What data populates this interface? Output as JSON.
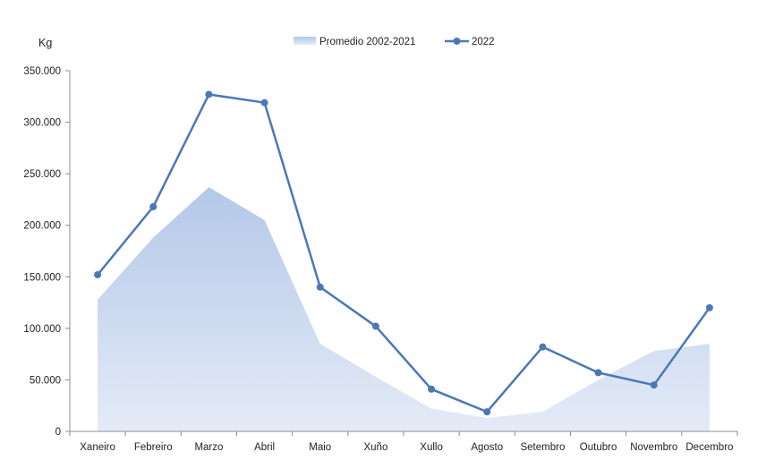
{
  "chart_data": {
    "type": "line",
    "title": "",
    "xlabel": "",
    "ylabel": "Kg",
    "ylim": [
      0,
      350000
    ],
    "yticks": [
      "0",
      "50.000",
      "100.000",
      "150.000",
      "200.000",
      "250.000",
      "300.000",
      "350.000"
    ],
    "ytick_values": [
      0,
      50000,
      100000,
      150000,
      200000,
      250000,
      300000,
      350000
    ],
    "categories": [
      "Xaneiro",
      "Febreiro",
      "Marzo",
      "Abril",
      "Maio",
      "Xuño",
      "Xullo",
      "Agosto",
      "Setembro",
      "Outubro",
      "Novembro",
      "Decembro"
    ],
    "legend_position": "top-center",
    "grid": false,
    "series": [
      {
        "name": "Promedio 2002-2021",
        "kind": "area",
        "color_top": "#b4c8e8",
        "color_bottom": "#e4ebf7",
        "values": [
          128000,
          188000,
          237000,
          205000,
          85000,
          53000,
          22000,
          13000,
          19000,
          50000,
          78000,
          85000
        ]
      },
      {
        "name": "2022",
        "kind": "line",
        "color": "#4a78b5",
        "values": [
          152000,
          218000,
          327000,
          319000,
          140000,
          102000,
          41000,
          19000,
          82000,
          57000,
          45000,
          120000
        ]
      }
    ]
  }
}
